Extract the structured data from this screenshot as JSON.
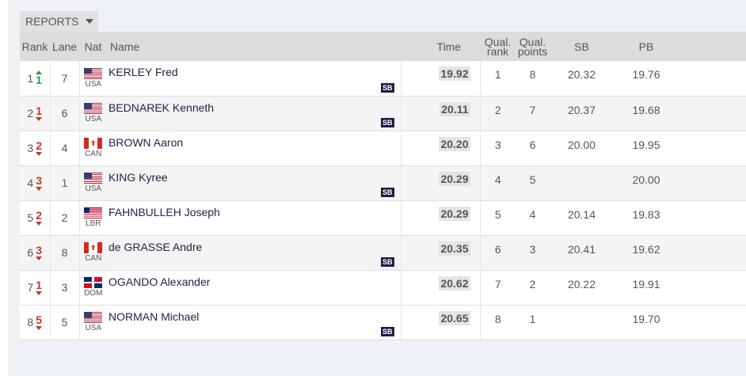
{
  "reports_tab": {
    "label": "REPORTS"
  },
  "table": {
    "headers": {
      "rank": "Rank",
      "lane": "Lane",
      "nat": "Nat",
      "name": "Name",
      "time": "Time",
      "qual_rank": [
        "Qual.",
        "rank"
      ],
      "qual_points": [
        "Qual.",
        "points"
      ],
      "sb": "SB",
      "pb": "PB"
    },
    "rows": [
      {
        "rank": "1",
        "move": "1",
        "move_dir": "up",
        "lane": "7",
        "nat": "USA",
        "name": "KERLEY Fred",
        "badge": "SB",
        "time": "19.92",
        "qual_rank": "1",
        "qual_points": "8",
        "sb": "20.32",
        "pb": "19.76"
      },
      {
        "rank": "2",
        "move": "1",
        "move_dir": "down",
        "lane": "6",
        "nat": "USA",
        "name": "BEDNAREK Kenneth",
        "badge": "SB",
        "time": "20.11",
        "qual_rank": "2",
        "qual_points": "7",
        "sb": "20.37",
        "pb": "19.68"
      },
      {
        "rank": "3",
        "move": "2",
        "move_dir": "down",
        "lane": "4",
        "nat": "CAN",
        "name": "BROWN Aaron",
        "badge": "",
        "time": "20.20",
        "qual_rank": "3",
        "qual_points": "6",
        "sb": "20.00",
        "pb": "19.95"
      },
      {
        "rank": "4",
        "move": "3",
        "move_dir": "down",
        "lane": "1",
        "nat": "USA",
        "name": "KING Kyree",
        "badge": "SB",
        "time": "20.29",
        "qual_rank": "4",
        "qual_points": "5",
        "sb": "",
        "pb": "20.00"
      },
      {
        "rank": "5",
        "move": "2",
        "move_dir": "down",
        "lane": "2",
        "nat": "LBR",
        "name": "FAHNBULLEH Joseph",
        "badge": "",
        "time": "20.29",
        "qual_rank": "5",
        "qual_points": "4",
        "sb": "20.14",
        "pb": "19.83"
      },
      {
        "rank": "6",
        "move": "3",
        "move_dir": "down",
        "lane": "8",
        "nat": "CAN",
        "name": "de GRASSE Andre",
        "badge": "SB",
        "time": "20.35",
        "qual_rank": "6",
        "qual_points": "3",
        "sb": "20.41",
        "pb": "19.62"
      },
      {
        "rank": "7",
        "move": "1",
        "move_dir": "down",
        "lane": "3",
        "nat": "DOM",
        "name": "OGANDO Alexander",
        "badge": "",
        "time": "20.62",
        "qual_rank": "7",
        "qual_points": "2",
        "sb": "20.22",
        "pb": "19.91"
      },
      {
        "rank": "8",
        "move": "5",
        "move_dir": "down",
        "lane": "5",
        "nat": "USA",
        "name": "NORMAN Michael",
        "badge": "SB",
        "time": "20.65",
        "qual_rank": "8",
        "qual_points": "1",
        "sb": "",
        "pb": "19.70"
      }
    ]
  },
  "colors": {
    "move_up": "#2d9a46",
    "move_down": "#c0392b",
    "badge_bg": "#1c1f48"
  }
}
